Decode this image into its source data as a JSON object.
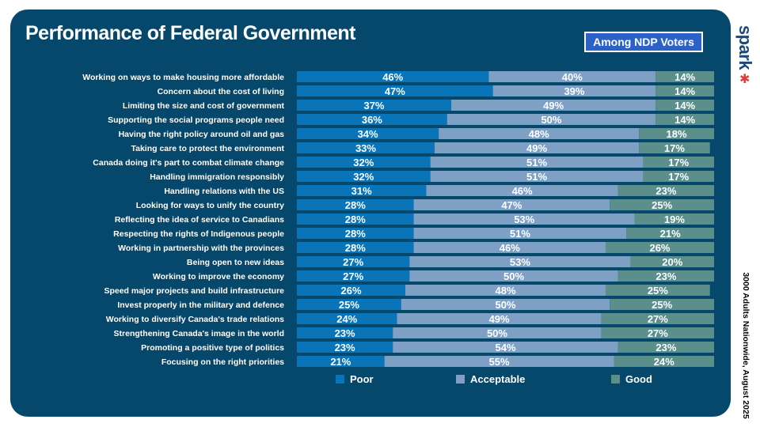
{
  "header": {
    "title": "Performance of Federal Government",
    "badge": "Among NDP Voters",
    "logo": "spark",
    "footnote": "3000 Adults Nationwide, August 2025"
  },
  "colors": {
    "background": "#05486b",
    "poor": "#0a74b8",
    "acceptable": "#7ea0c4",
    "good": "#5b8f8c",
    "badge": "#2c62c7"
  },
  "chart_data": {
    "type": "bar",
    "orientation": "horizontal",
    "stacked": true,
    "title": "Performance of Federal Government",
    "subtitle": "Among NDP Voters",
    "unit": "%",
    "xlim": [
      0,
      100
    ],
    "legend_position": "bottom",
    "categories": [
      "Working on ways to make housing more affordable",
      "Concern about the cost of living",
      "Limiting the size and cost of government",
      "Supporting the social programs people need",
      "Having the right policy around oil and gas",
      "Taking care to protect the environment",
      "Canada doing it's part to combat climate change",
      "Handling immigration responsibly",
      "Handling relations with the US",
      "Looking for ways to unify the country",
      "Reflecting the idea of service to Canadians",
      "Respecting the rights of Indigenous people",
      "Working in partnership with the provinces",
      "Being open to new ideas",
      "Working to improve the economy",
      "Speed major projects and build infrastructure",
      "Invest properly in the military and defence",
      "Working to diversify Canada's trade relations",
      "Strengthening Canada's image in the world",
      "Promoting a positive type of politics",
      "Focusing on the right priorities"
    ],
    "series": [
      {
        "name": "Poor",
        "values": [
          46,
          47,
          37,
          36,
          34,
          33,
          32,
          32,
          31,
          28,
          28,
          28,
          28,
          27,
          27,
          26,
          25,
          24,
          23,
          23,
          21
        ]
      },
      {
        "name": "Acceptable",
        "values": [
          40,
          39,
          49,
          50,
          48,
          49,
          51,
          51,
          46,
          47,
          53,
          51,
          46,
          53,
          50,
          48,
          50,
          49,
          50,
          54,
          55
        ]
      },
      {
        "name": "Good",
        "values": [
          14,
          14,
          14,
          14,
          18,
          17,
          17,
          17,
          23,
          25,
          19,
          21,
          26,
          20,
          23,
          25,
          25,
          27,
          27,
          23,
          24
        ]
      }
    ]
  }
}
